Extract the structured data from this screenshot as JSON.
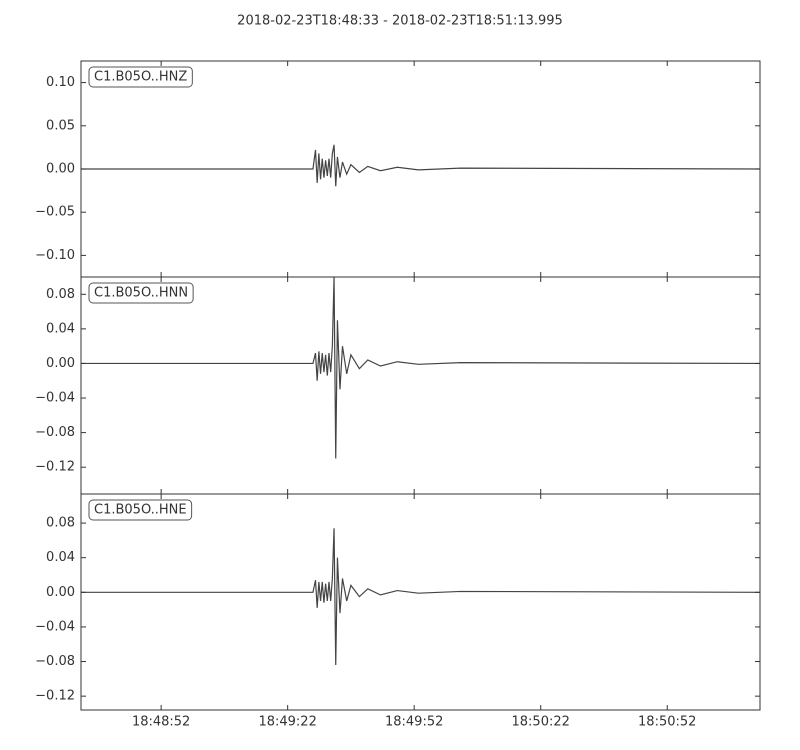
{
  "title": "2018-02-23T18:48:33  -  2018-02-23T18:51:13.995",
  "xlim": [
    0,
    160.995
  ],
  "xticks": [
    {
      "value": 19,
      "label": "18:48:52"
    },
    {
      "value": 49,
      "label": "18:49:22"
    },
    {
      "value": 79,
      "label": "18:49:52"
    },
    {
      "value": 109,
      "label": "18:50:22"
    },
    {
      "value": 139,
      "label": "18:50:52"
    }
  ],
  "chart_data": [
    {
      "type": "line",
      "label": "C1.B05O..HNZ",
      "color": "#444444",
      "x": [
        0,
        55.0,
        55.6,
        56.0,
        56.4,
        56.8,
        57.2,
        57.6,
        58.0,
        58.4,
        58.8,
        59.2,
        59.6,
        60.0,
        60.4,
        60.8,
        61.4,
        62.0,
        63,
        64,
        66,
        68,
        71,
        75,
        80,
        90,
        160.995
      ],
      "values": [
        0,
        0,
        0.022,
        -0.016,
        0.018,
        -0.012,
        0.012,
        -0.01,
        0.01,
        -0.008,
        0.012,
        -0.01,
        0.018,
        0.028,
        -0.02,
        0.014,
        -0.01,
        0.008,
        -0.006,
        0.005,
        -0.004,
        0.003,
        -0.002,
        0.002,
        -0.001,
        0.001,
        0
      ],
      "ylim": [
        -0.125,
        0.125
      ],
      "yticks": [
        {
          "value": 0.1,
          "label": "0.10"
        },
        0.05,
        {
          "value": 0,
          "label": "0.00"
        },
        {
          "value": -0.05,
          "label": "−0.05"
        },
        {
          "value": -0.1,
          "label": "−0.10"
        }
      ]
    },
    {
      "type": "line",
      "label": "C1.B05O..HNN",
      "color": "#444444",
      "x": [
        0,
        55.0,
        55.6,
        56.0,
        56.4,
        56.8,
        57.2,
        57.6,
        58.0,
        58.4,
        58.8,
        59.2,
        59.6,
        60.0,
        60.4,
        60.8,
        61.4,
        62.0,
        63,
        64,
        66,
        68,
        71,
        75,
        80,
        90,
        160.995
      ],
      "values": [
        0,
        0,
        0.012,
        -0.02,
        0.014,
        -0.012,
        0.012,
        -0.01,
        0.01,
        -0.014,
        0.012,
        -0.01,
        0.02,
        0.1,
        -0.11,
        0.05,
        -0.03,
        0.02,
        -0.012,
        0.01,
        -0.006,
        0.004,
        -0.003,
        0.002,
        -0.001,
        0.001,
        0
      ],
      "ylim": [
        -0.151,
        0.1
      ],
      "yticks": [
        0.08,
        0.04,
        {
          "value": 0,
          "label": "0.00"
        },
        {
          "value": -0.04,
          "label": "−0.04"
        },
        {
          "value": -0.08,
          "label": "−0.08"
        },
        {
          "value": -0.12,
          "label": "−0.12"
        }
      ]
    },
    {
      "type": "line",
      "label": "C1.B05O..HNE",
      "color": "#444444",
      "x": [
        0,
        55.0,
        55.6,
        56.0,
        56.4,
        56.8,
        57.2,
        57.6,
        58.0,
        58.4,
        58.8,
        59.2,
        59.6,
        60.0,
        60.4,
        60.8,
        61.4,
        62.0,
        63,
        64,
        66,
        68,
        71,
        75,
        80,
        90,
        160.995
      ],
      "values": [
        0,
        0,
        0.014,
        -0.018,
        0.012,
        -0.01,
        0.012,
        -0.012,
        0.01,
        -0.01,
        0.012,
        -0.01,
        0.016,
        0.074,
        -0.084,
        0.04,
        -0.024,
        0.016,
        -0.01,
        0.008,
        -0.005,
        0.004,
        -0.003,
        0.002,
        -0.001,
        0.001,
        0
      ],
      "ylim": [
        -0.136,
        0.1136
      ],
      "yticks": [
        0.08,
        0.04,
        {
          "value": 0,
          "label": "0.00"
        },
        {
          "value": -0.04,
          "label": "−0.04"
        },
        {
          "value": -0.08,
          "label": "−0.08"
        },
        {
          "value": -0.12,
          "label": "−0.12"
        }
      ]
    }
  ]
}
